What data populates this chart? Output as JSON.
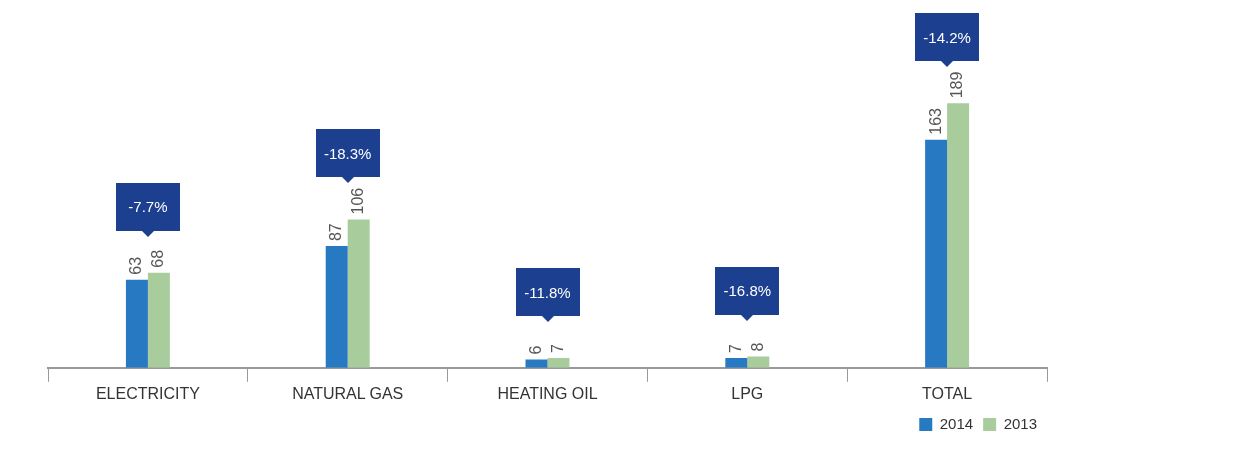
{
  "chart_data": {
    "type": "bar",
    "categories": [
      "ELECTRICITY",
      "NATURAL GAS",
      "HEATING OIL",
      "LPG",
      "TOTAL"
    ],
    "series": [
      {
        "name": "2014",
        "color": "#2779c2",
        "values": [
          63,
          87,
          6,
          7,
          163
        ]
      },
      {
        "name": "2013",
        "color": "#a8cc9c",
        "values": [
          68,
          106,
          7,
          8,
          189
        ]
      }
    ],
    "data_labels": true,
    "legend": "bottom right",
    "annotations": [
      "-7.7%",
      "-18.3%",
      "-11.8%",
      "-16.8%",
      "-14.2%"
    ]
  }
}
